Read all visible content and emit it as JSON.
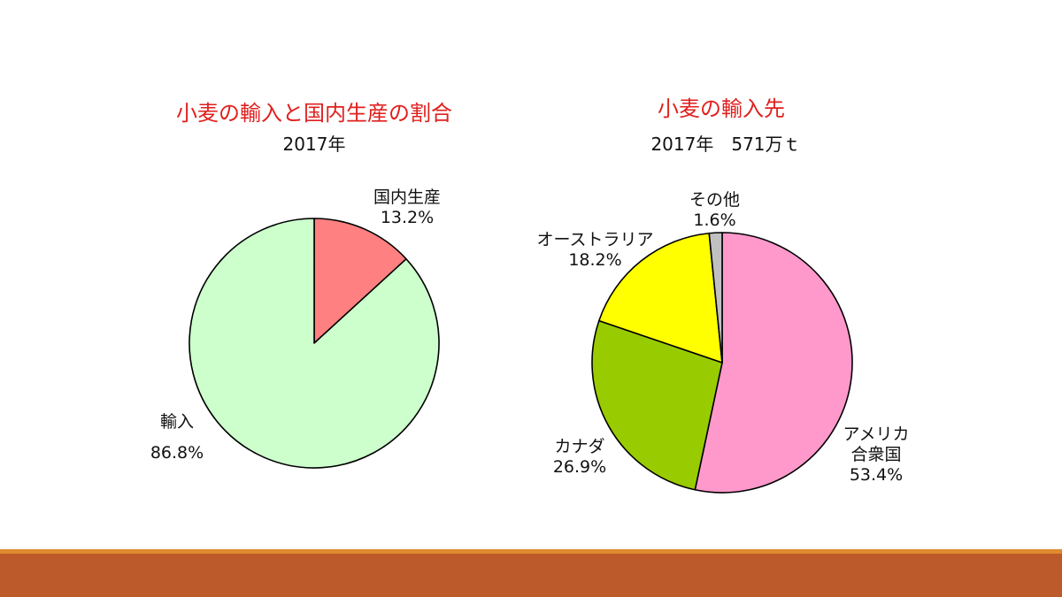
{
  "chart_data": [
    {
      "type": "pie",
      "title": "小麦の輸入と国内生産の割合",
      "subtitle": "2017年",
      "slices": [
        {
          "label": "国内生産",
          "value_text": "13.2%",
          "value": 13.2,
          "color": "#ff8080"
        },
        {
          "label": "輸入",
          "value_text": "86.8%",
          "value": 86.8,
          "color": "#ccffcc"
        }
      ]
    },
    {
      "type": "pie",
      "title": "小麦の輸入先",
      "subtitle": "2017年　571万ｔ",
      "slices": [
        {
          "label": "アメリカ合衆国",
          "label_lines": [
            "アメリカ",
            "合衆国"
          ],
          "value_text": "53.4%",
          "value": 53.4,
          "color": "#ff99cc"
        },
        {
          "label": "カナダ",
          "label_lines": [
            "カナダ"
          ],
          "value_text": "26.9%",
          "value": 26.9,
          "color": "#99cc00"
        },
        {
          "label": "オーストラリア",
          "label_lines": [
            "オーストラリア"
          ],
          "value_text": "18.2%",
          "value": 18.2,
          "color": "#ffff00"
        },
        {
          "label": "その他",
          "label_lines": [
            "その他"
          ],
          "value_text": "1.6%",
          "value": 1.6,
          "color": "#c0c0c0"
        }
      ]
    }
  ]
}
